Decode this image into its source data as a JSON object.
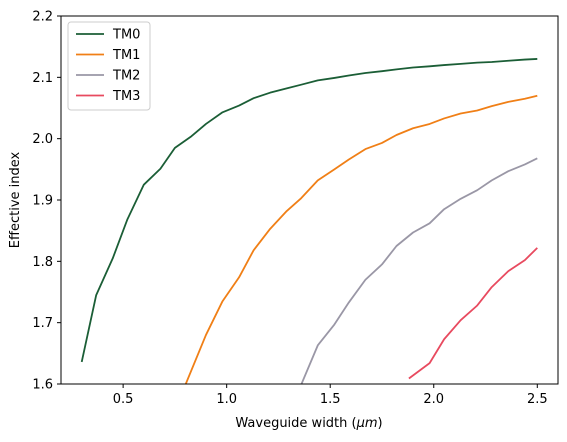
{
  "chart_data": {
    "type": "line",
    "title": "",
    "xlabel": "Waveguide width (",
    "xlabel_unit": "μm",
    "xlabel_close": ")",
    "ylabel": "Effective index",
    "xlim": [
      0.2,
      2.6
    ],
    "ylim": [
      1.6,
      2.2
    ],
    "xticks": [
      0.5,
      1.0,
      1.5,
      2.0,
      2.5
    ],
    "xtick_labels": [
      "0.5",
      "1.0",
      "1.5",
      "2.0",
      "2.5"
    ],
    "yticks": [
      1.6,
      1.7,
      1.8,
      1.9,
      2.0,
      2.1,
      2.2
    ],
    "ytick_labels": [
      "1.6",
      "1.7",
      "1.8",
      "1.9",
      "2.0",
      "2.1",
      "2.2"
    ],
    "grid": false,
    "legend": "top-left",
    "series": [
      {
        "name": "TM0",
        "color": "#1b5e36",
        "x": [
          0.3,
          0.37,
          0.45,
          0.52,
          0.6,
          0.68,
          0.75,
          0.83,
          0.9,
          0.98,
          1.06,
          1.13,
          1.21,
          1.29,
          1.36,
          1.44,
          1.52,
          1.59,
          1.67,
          1.75,
          1.82,
          1.9,
          1.98,
          2.05,
          2.13,
          2.21,
          2.28,
          2.36,
          2.44,
          2.5
        ],
        "y": [
          1.636,
          1.745,
          1.805,
          1.868,
          1.925,
          1.951,
          1.985,
          2.004,
          2.024,
          2.043,
          2.054,
          2.066,
          2.075,
          2.082,
          2.088,
          2.095,
          2.099,
          2.103,
          2.107,
          2.11,
          2.113,
          2.116,
          2.118,
          2.12,
          2.122,
          2.124,
          2.125,
          2.127,
          2.129,
          2.13
        ]
      },
      {
        "name": "TM1",
        "color": "#f07f16",
        "x": [
          0.8,
          0.9,
          0.98,
          1.06,
          1.13,
          1.21,
          1.29,
          1.36,
          1.44,
          1.52,
          1.59,
          1.67,
          1.75,
          1.82,
          1.9,
          1.98,
          2.05,
          2.13,
          2.21,
          2.28,
          2.36,
          2.44,
          2.5
        ],
        "y": [
          1.598,
          1.68,
          1.735,
          1.774,
          1.818,
          1.853,
          1.882,
          1.903,
          1.932,
          1.95,
          1.966,
          1.983,
          1.993,
          2.006,
          2.017,
          2.024,
          2.033,
          2.041,
          2.046,
          2.053,
          2.06,
          2.065,
          2.07
        ]
      },
      {
        "name": "TM2",
        "color": "#9a97a6",
        "x": [
          1.36,
          1.44,
          1.52,
          1.59,
          1.67,
          1.75,
          1.82,
          1.9,
          1.98,
          2.05,
          2.13,
          2.21,
          2.28,
          2.36,
          2.44,
          2.5
        ],
        "y": [
          1.599,
          1.663,
          1.697,
          1.733,
          1.77,
          1.795,
          1.825,
          1.847,
          1.862,
          1.885,
          1.902,
          1.916,
          1.932,
          1.947,
          1.958,
          1.968
        ]
      },
      {
        "name": "TM3",
        "color": "#e84a5f",
        "x": [
          1.88,
          1.98,
          2.05,
          2.13,
          2.21,
          2.28,
          2.36,
          2.44,
          2.5
        ],
        "y": [
          1.609,
          1.634,
          1.673,
          1.704,
          1.728,
          1.758,
          1.784,
          1.802,
          1.822
        ]
      }
    ]
  }
}
